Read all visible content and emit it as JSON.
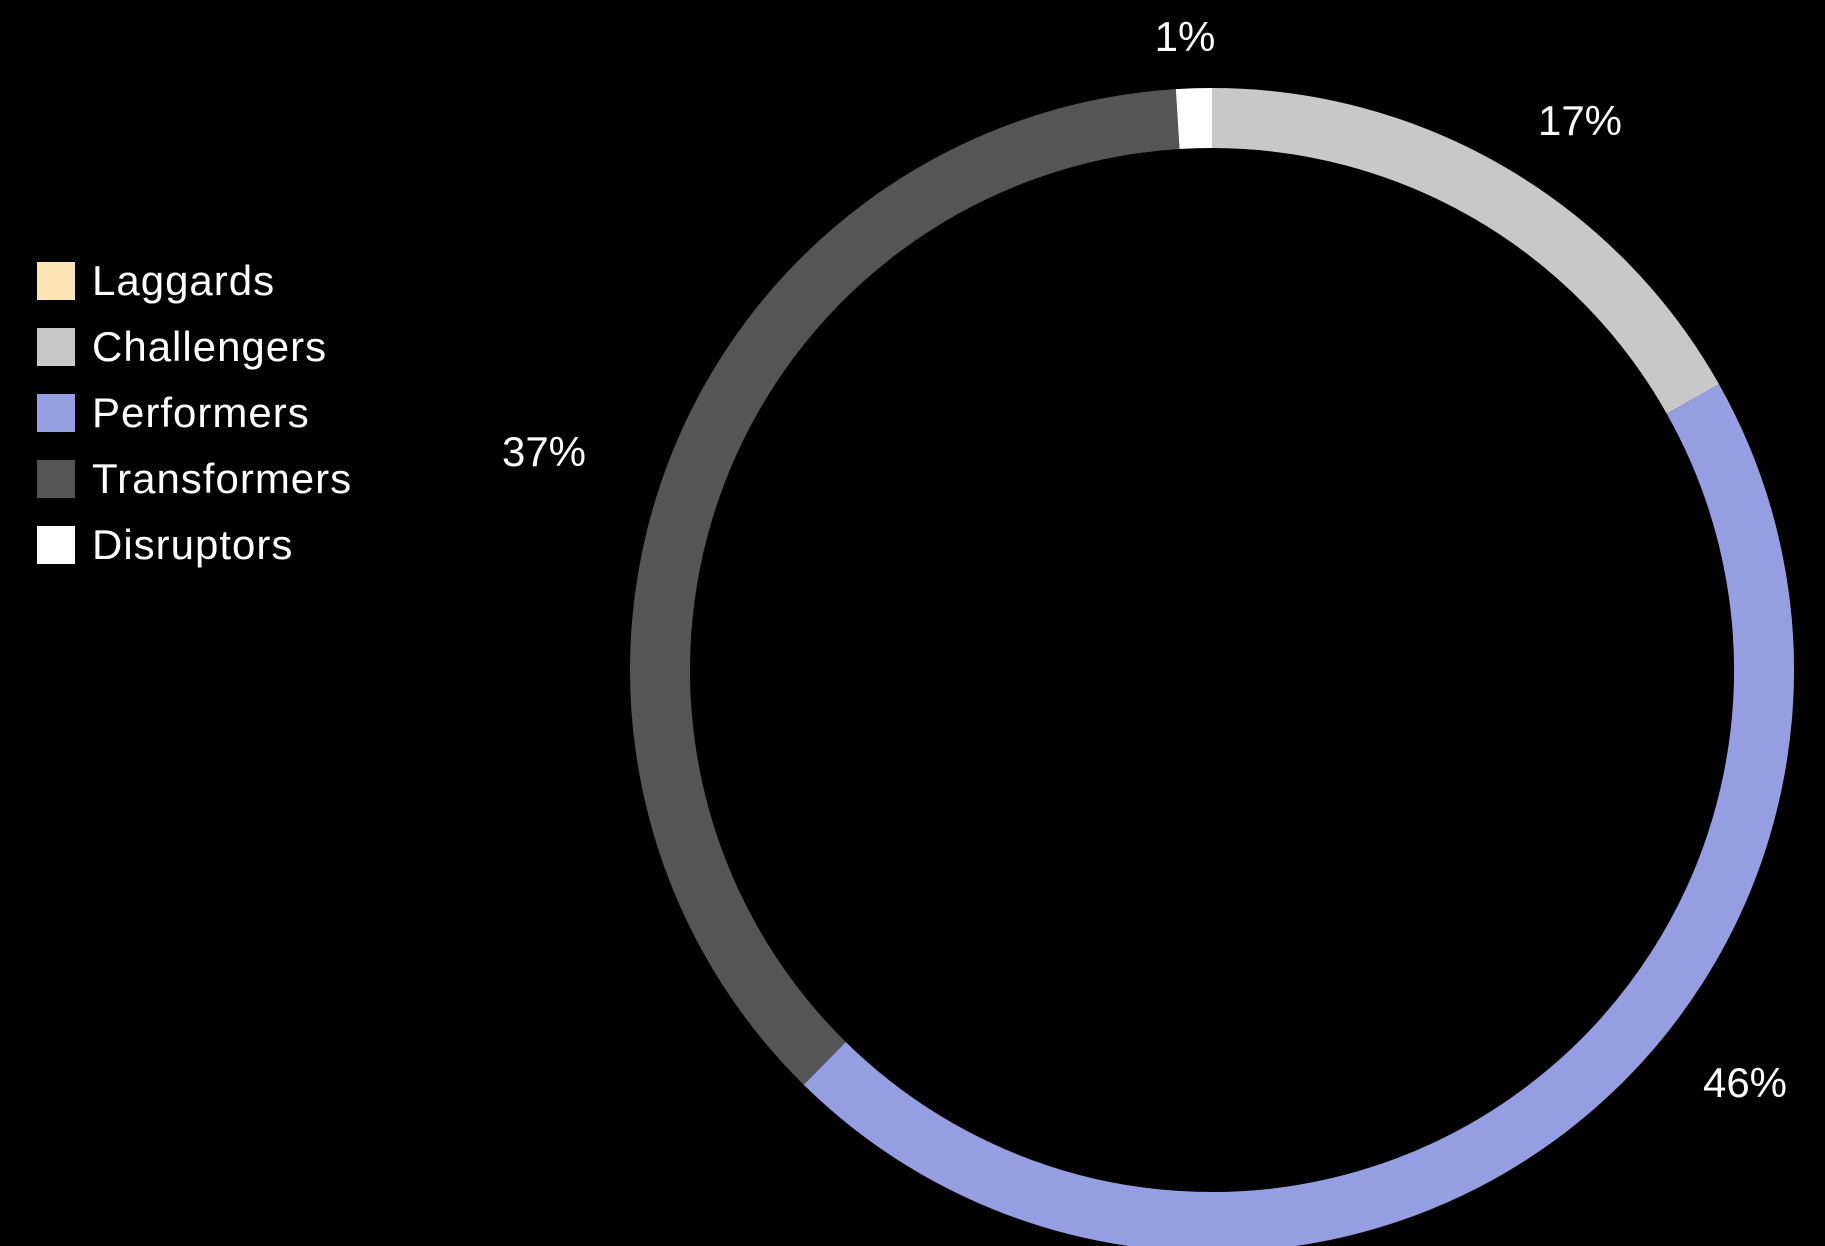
{
  "chart_data": {
    "type": "pie",
    "variant": "donut",
    "start_angle_deg": 0,
    "direction": "clockwise",
    "legend_position": "left",
    "background": "#000000",
    "label_color": "#ffffff",
    "series": [
      {
        "name": "Laggards",
        "value": 0,
        "label": "",
        "color": "#fde4b4"
      },
      {
        "name": "Challengers",
        "value": 17,
        "label": "17%",
        "color": "#c8c8c8"
      },
      {
        "name": "Performers",
        "value": 46,
        "label": "46%",
        "color": "#959ee0"
      },
      {
        "name": "Transformers",
        "value": 37,
        "label": "37%",
        "color": "#555555"
      },
      {
        "name": "Disruptors",
        "value": 1,
        "label": "1%",
        "color": "#ffffff"
      }
    ],
    "slice_order": [
      "Challengers",
      "Performers",
      "Transformers",
      "Disruptors"
    ]
  }
}
